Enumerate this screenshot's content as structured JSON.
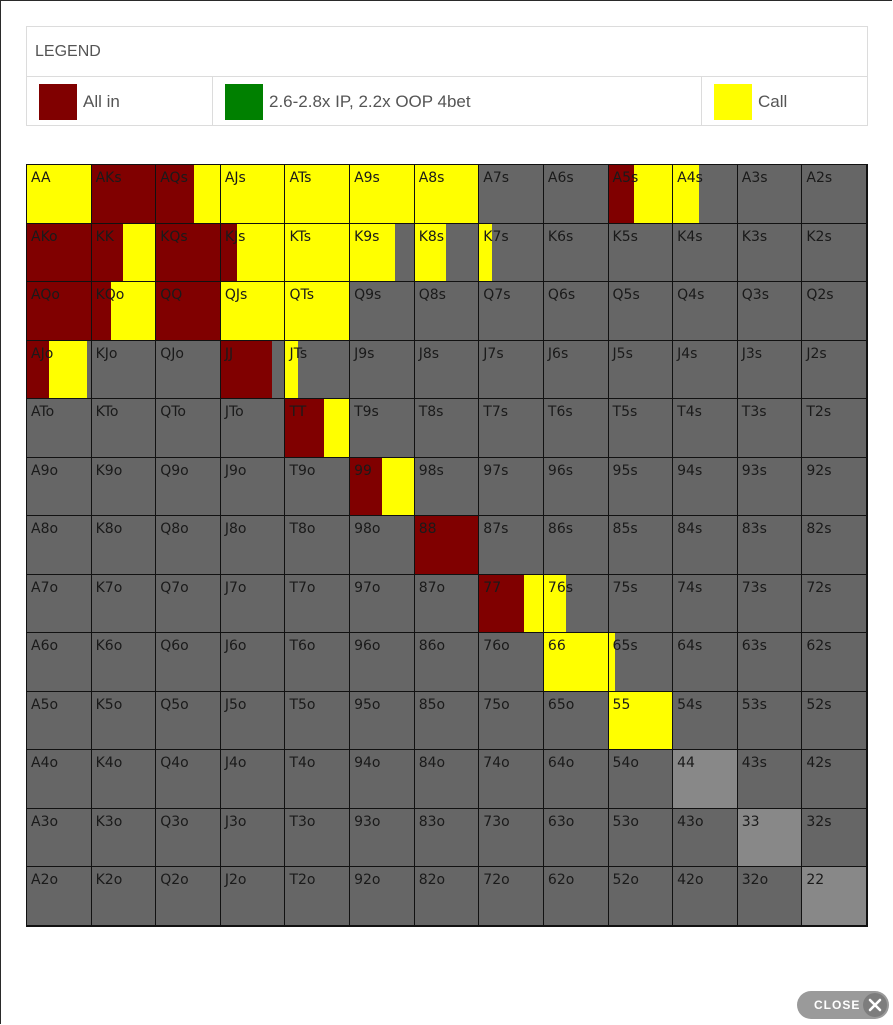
{
  "colors": {
    "allin": "#800000",
    "raise4bet": "#008000",
    "call": "#ffff00",
    "fold": "#666666",
    "fold_light": "#888888"
  },
  "legend": {
    "title": "LEGEND",
    "items": [
      {
        "label": "All in",
        "color": "#800000"
      },
      {
        "label": "2.6-2.8x IP, 2.2x OOP 4bet",
        "color": "#008000"
      },
      {
        "label": "Call",
        "color": "#ffff00"
      }
    ]
  },
  "ranks": [
    "A",
    "K",
    "Q",
    "J",
    "T",
    "9",
    "8",
    "7",
    "6",
    "5",
    "4",
    "3",
    "2"
  ],
  "hand_actions": {
    "AA": {
      "call": 1
    },
    "AKs": {
      "allin": 1
    },
    "AQs": {
      "allin": 0.6,
      "call": 0.4
    },
    "AJs": {
      "call": 1
    },
    "ATs": {
      "call": 1
    },
    "A9s": {
      "call": 1
    },
    "A8s": {
      "call": 1
    },
    "A5s": {
      "allin": 0.4,
      "call": 0.6
    },
    "A4s": {
      "call": 0.4
    },
    "AKo": {
      "allin": 1
    },
    "KK": {
      "allin": 0.5,
      "call": 0.5
    },
    "KQs": {
      "allin": 1
    },
    "KJs": {
      "allin": 0.25,
      "call": 0.75
    },
    "KTs": {
      "call": 1
    },
    "K9s": {
      "call": 0.7
    },
    "K8s": {
      "call": 0.5
    },
    "K7s": {
      "call": 0.2
    },
    "AQo": {
      "allin": 1
    },
    "KQo": {
      "allin": 0.3,
      "call": 0.7
    },
    "QQ": {
      "allin": 1
    },
    "QJs": {
      "call": 1
    },
    "QTs": {
      "call": 1
    },
    "AJo": {
      "allin": 0.35,
      "call": 0.6
    },
    "JJ": {
      "allin": 0.8
    },
    "JTs": {
      "call": 0.2
    },
    "TT": {
      "allin": 0.6,
      "call": 0.4
    },
    "99": {
      "allin": 0.5,
      "call": 0.5
    },
    "88": {
      "allin": 1
    },
    "77": {
      "allin": 0.7,
      "call": 0.3
    },
    "76s": {
      "call": 0.35
    },
    "66": {
      "call": 1
    },
    "65s": {
      "call": 0.1
    },
    "55": {
      "call": 1
    }
  },
  "light_cells": [
    "44",
    "33",
    "22"
  ],
  "close_button": {
    "label": "CLOSE"
  }
}
